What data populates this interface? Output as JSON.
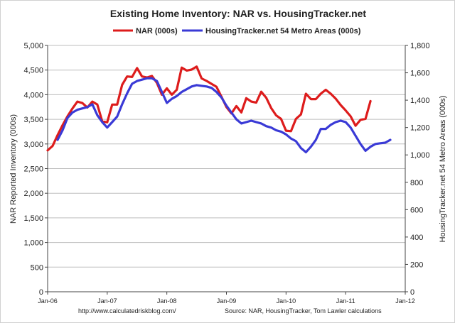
{
  "chart_data": {
    "type": "line",
    "title": "Existing Home Inventory: NAR vs. HousingTracker.net",
    "ylabel": "NAR Reported Inventory (000s)",
    "y2label": "HousingTracker.net 54 Metro Areas (000s)",
    "ylim": [
      0,
      5000
    ],
    "y2lim": [
      0,
      1800
    ],
    "yticks": [
      "0",
      "500",
      "1,000",
      "1,500",
      "2,000",
      "2,500",
      "3,000",
      "3,500",
      "4,000",
      "4,500",
      "5,000"
    ],
    "y2ticks": [
      "0",
      "200",
      "400",
      "600",
      "800",
      "1,000",
      "1,200",
      "1,400",
      "1,600",
      "1,800"
    ],
    "xticks": [
      "Jan-06",
      "Jan-07",
      "Jan-08",
      "Jan-09",
      "Jan-10",
      "Jan-11",
      "Jan-12"
    ],
    "legend_position": "top",
    "series": [
      {
        "name": "NAR (000s)",
        "color": "#dd1c1c",
        "axis": "left",
        "start": "2006-01",
        "values": [
          2870,
          2960,
          3180,
          3380,
          3560,
          3720,
          3860,
          3830,
          3740,
          3860,
          3800,
          3460,
          3440,
          3800,
          3800,
          4200,
          4370,
          4360,
          4540,
          4370,
          4350,
          4380,
          4240,
          4000,
          4130,
          4000,
          4100,
          4550,
          4490,
          4510,
          4570,
          4330,
          4280,
          4220,
          4160,
          3960,
          3750,
          3620,
          3770,
          3640,
          3930,
          3860,
          3840,
          4060,
          3940,
          3730,
          3580,
          3510,
          3270,
          3260,
          3510,
          3600,
          4020,
          3910,
          3910,
          4020,
          4100,
          4020,
          3920,
          3790,
          3680,
          3560,
          3370,
          3490,
          3510,
          3870
        ]
      },
      {
        "name": "HousingTracker.net 54 Metro Areas (000s)",
        "color": "#3a3ad6",
        "axis": "right",
        "start": "2006-03",
        "values": [
          1110,
          1180,
          1270,
          1310,
          1330,
          1340,
          1350,
          1370,
          1290,
          1240,
          1200,
          1240,
          1280,
          1370,
          1450,
          1520,
          1540,
          1550,
          1560,
          1560,
          1540,
          1460,
          1380,
          1410,
          1430,
          1460,
          1480,
          1500,
          1510,
          1505,
          1500,
          1490,
          1460,
          1420,
          1360,
          1310,
          1260,
          1230,
          1240,
          1250,
          1240,
          1230,
          1210,
          1200,
          1180,
          1170,
          1150,
          1120,
          1100,
          1050,
          1020,
          1060,
          1110,
          1190,
          1190,
          1220,
          1240,
          1250,
          1240,
          1200,
          1140,
          1080,
          1030,
          1060,
          1080,
          1085,
          1090,
          1110
        ]
      }
    ]
  },
  "footer": {
    "left": "http://www.calculatedriskblog.com/",
    "right": "Source: NAR, HousingTracker, Tom Lawler calculations"
  }
}
